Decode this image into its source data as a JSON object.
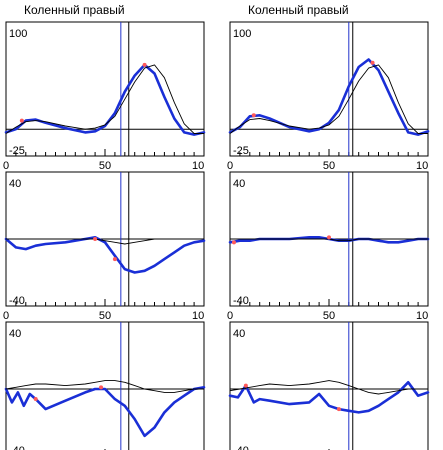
{
  "headers": [
    "Коленный правый",
    "Коленный правый"
  ],
  "colors": {
    "patient": "#1a2fd6",
    "norm": "#000000",
    "marker": "#ff5a5a",
    "blue_line": "#2233cc",
    "axis": "#000000",
    "background": "#ffffff"
  },
  "chart_data": [
    {
      "type": "line",
      "row": 0,
      "col": 0,
      "ytop_label": "100",
      "ybottom_label": "-25",
      "xtick_labels": [
        "0",
        "50",
        "10"
      ],
      "ylim": [
        -25,
        100
      ],
      "xlim": [
        0,
        100
      ],
      "blue_x": 58,
      "black_x": 62,
      "series": [
        {
          "role": "patient",
          "x": [
            0,
            5,
            10,
            15,
            20,
            30,
            40,
            45,
            50,
            55,
            60,
            65,
            70,
            75,
            80,
            85,
            90,
            95,
            100
          ],
          "values": [
            -3,
            0,
            8,
            9,
            6,
            1,
            -3,
            -2,
            3,
            15,
            35,
            50,
            60,
            52,
            30,
            10,
            -3,
            -5,
            -3
          ]
        },
        {
          "role": "norm",
          "x": [
            0,
            5,
            10,
            15,
            20,
            30,
            40,
            45,
            50,
            55,
            60,
            65,
            70,
            75,
            80,
            85,
            90,
            95,
            100
          ],
          "values": [
            -4,
            2,
            7,
            8,
            7,
            3,
            0,
            1,
            4,
            12,
            28,
            44,
            57,
            60,
            48,
            25,
            5,
            -4,
            -4
          ]
        }
      ],
      "markers": [
        {
          "x": 8,
          "y": 8
        },
        {
          "x": 70,
          "y": 60
        }
      ]
    },
    {
      "type": "line",
      "row": 0,
      "col": 1,
      "ytop_label": "100",
      "ybottom_label": "-25",
      "xtick_labels": [
        "0",
        "50",
        "10"
      ],
      "ylim": [
        -25,
        100
      ],
      "xlim": [
        0,
        100
      ],
      "blue_x": 60,
      "black_x": 62,
      "series": [
        {
          "role": "patient",
          "x": [
            0,
            5,
            10,
            15,
            20,
            30,
            40,
            45,
            50,
            55,
            60,
            65,
            70,
            75,
            80,
            85,
            90,
            95,
            100
          ],
          "values": [
            -3,
            2,
            12,
            13,
            10,
            2,
            -2,
            0,
            6,
            18,
            40,
            58,
            65,
            55,
            35,
            15,
            -3,
            -5,
            -2
          ]
        },
        {
          "role": "norm",
          "x": [
            0,
            5,
            10,
            15,
            20,
            30,
            40,
            45,
            50,
            55,
            60,
            65,
            70,
            75,
            80,
            85,
            90,
            95,
            100
          ],
          "values": [
            -4,
            3,
            9,
            10,
            8,
            3,
            0,
            1,
            4,
            12,
            28,
            45,
            57,
            60,
            48,
            25,
            5,
            -4,
            -4
          ]
        }
      ],
      "markers": [
        {
          "x": 12,
          "y": 13
        },
        {
          "x": 72,
          "y": 62
        }
      ]
    },
    {
      "type": "line",
      "row": 1,
      "col": 0,
      "ytop_label": "40",
      "ybottom_label": "-40",
      "xtick_labels": [
        "0",
        "50",
        "10"
      ],
      "ylim": [
        -40,
        40
      ],
      "xlim": [
        0,
        100
      ],
      "blue_x": 58,
      "black_x": 62,
      "series": [
        {
          "role": "patient",
          "x": [
            0,
            5,
            10,
            15,
            20,
            30,
            40,
            45,
            50,
            55,
            60,
            65,
            70,
            75,
            80,
            85,
            90,
            95,
            100
          ],
          "values": [
            0,
            -5,
            -6,
            -4,
            -3,
            -2,
            0,
            1,
            -2,
            -10,
            -18,
            -20,
            -19,
            -16,
            -12,
            -8,
            -4,
            -2,
            -1
          ]
        },
        {
          "role": "norm",
          "x": [
            0,
            5,
            10,
            15,
            20,
            30,
            40,
            45,
            50,
            55,
            60,
            65,
            70,
            75,
            80,
            85,
            90,
            95,
            100
          ],
          "values": [
            0,
            0,
            0,
            0,
            0,
            0,
            0,
            0,
            -1,
            -2,
            -3,
            -2,
            -1,
            0,
            0,
            0,
            0,
            0,
            0
          ]
        }
      ],
      "markers": [
        {
          "x": 45,
          "y": 0
        },
        {
          "x": 55,
          "y": -12
        }
      ]
    },
    {
      "type": "line",
      "row": 1,
      "col": 1,
      "ytop_label": "40",
      "ybottom_label": "-40",
      "xtick_labels": [
        "0",
        "50",
        "10"
      ],
      "ylim": [
        -40,
        40
      ],
      "xlim": [
        0,
        100
      ],
      "blue_x": 60,
      "black_x": 62,
      "series": [
        {
          "role": "patient",
          "x": [
            0,
            5,
            10,
            15,
            20,
            30,
            40,
            45,
            50,
            55,
            60,
            65,
            70,
            75,
            80,
            85,
            90,
            95,
            100
          ],
          "values": [
            -2,
            -1,
            -1,
            0,
            0,
            0,
            1,
            1,
            0,
            -1,
            -1,
            0,
            0,
            -1,
            -2,
            -2,
            -1,
            0,
            0
          ]
        },
        {
          "role": "norm",
          "x": [
            0,
            5,
            10,
            15,
            20,
            30,
            40,
            45,
            50,
            55,
            60,
            65,
            70,
            75,
            80,
            85,
            90,
            95,
            100
          ],
          "values": [
            0,
            0,
            0,
            0,
            0,
            0,
            0,
            0,
            0,
            -1,
            -1,
            0,
            0,
            0,
            0,
            0,
            0,
            0,
            0
          ]
        }
      ],
      "markers": [
        {
          "x": 2,
          "y": -2
        },
        {
          "x": 50,
          "y": 1
        }
      ]
    },
    {
      "type": "line",
      "row": 2,
      "col": 0,
      "ytop_label": "40",
      "ybottom_label": "-40",
      "xtick_labels": [
        "0",
        "50",
        "10"
      ],
      "ylim": [
        -40,
        40
      ],
      "xlim": [
        0,
        100
      ],
      "blue_x": 58,
      "black_x": 62,
      "series": [
        {
          "role": "patient",
          "x": [
            0,
            3,
            6,
            9,
            12,
            15,
            20,
            30,
            40,
            45,
            50,
            55,
            60,
            65,
            70,
            75,
            80,
            85,
            90,
            95,
            100
          ],
          "values": [
            0,
            -8,
            -2,
            -10,
            -3,
            -6,
            -12,
            -7,
            -2,
            0,
            0,
            -6,
            -10,
            -18,
            -28,
            -23,
            -14,
            -8,
            -4,
            0,
            1
          ]
        },
        {
          "role": "norm",
          "x": [
            0,
            5,
            10,
            15,
            20,
            30,
            40,
            45,
            50,
            55,
            60,
            65,
            70,
            75,
            80,
            85,
            90,
            95,
            100
          ],
          "values": [
            0,
            1,
            2,
            3,
            3,
            2,
            3,
            4,
            5,
            5,
            4,
            2,
            0,
            -1,
            -2,
            -2,
            -1,
            0,
            0
          ]
        }
      ],
      "markers": [
        {
          "x": 15,
          "y": -6
        },
        {
          "x": 48,
          "y": 1
        }
      ]
    },
    {
      "type": "line",
      "row": 2,
      "col": 1,
      "ytop_label": "40",
      "ybottom_label": "-40",
      "xtick_labels": [
        "0",
        "50",
        "10"
      ],
      "ylim": [
        -40,
        40
      ],
      "xlim": [
        0,
        100
      ],
      "blue_x": 60,
      "black_x": 62,
      "series": [
        {
          "role": "patient",
          "x": [
            0,
            4,
            8,
            12,
            15,
            20,
            30,
            40,
            45,
            50,
            55,
            60,
            65,
            70,
            75,
            80,
            85,
            90,
            95,
            100
          ],
          "values": [
            -4,
            -5,
            2,
            -8,
            -6,
            -7,
            -9,
            -8,
            -3,
            -10,
            -12,
            -13,
            -14,
            -13,
            -10,
            -6,
            -2,
            4,
            -4,
            -2
          ]
        },
        {
          "role": "norm",
          "x": [
            0,
            5,
            10,
            15,
            20,
            30,
            40,
            45,
            50,
            55,
            60,
            65,
            70,
            75,
            80,
            85,
            90,
            95,
            100
          ],
          "values": [
            -1,
            0,
            1,
            2,
            3,
            2,
            3,
            4,
            5,
            4,
            2,
            0,
            -2,
            -3,
            -2,
            -1,
            0,
            0,
            0
          ]
        }
      ],
      "markers": [
        {
          "x": 8,
          "y": 2
        },
        {
          "x": 55,
          "y": -12
        }
      ]
    }
  ]
}
